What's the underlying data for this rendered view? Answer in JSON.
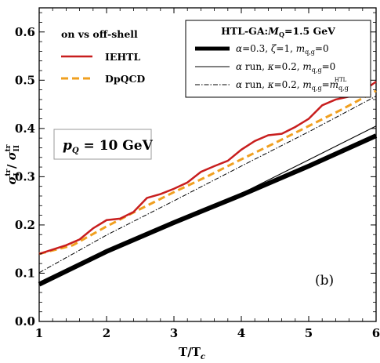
{
  "chart_data": {
    "type": "line",
    "title": "",
    "xlabel": "T/T",
    "xlabel_sub": "c",
    "ylabel": "σ",
    "xlim": [
      1,
      6
    ],
    "ylim": [
      0.0,
      0.65
    ],
    "x_ticks": [
      "1",
      "2",
      "3",
      "4",
      "5",
      "6"
    ],
    "y_ticks": [
      "0.0",
      "0.1",
      "0.2",
      "0.3",
      "0.4",
      "0.5",
      "0.6"
    ],
    "x_tick_values": [
      1,
      2,
      3,
      4,
      5,
      6
    ],
    "y_tick_values": [
      0.0,
      0.1,
      0.2,
      0.3,
      0.4,
      0.5,
      0.6
    ],
    "annotation": "p = 10 GeV",
    "panel_label": "(b)",
    "legend_left": {
      "title": "on vs off-shell",
      "entries": [
        "IEHTL",
        "DpQCD"
      ]
    },
    "legend_right": {
      "title": "HTL-GA:M = 1.5 GeV",
      "entries": [
        "α=0.3, ζ=1, m = 0",
        "α run, κ=0.2, m = 0",
        "α run, κ=0.2, m = m"
      ]
    },
    "series": [
      {
        "name": "IEHTL",
        "color": "#c81e1e",
        "x": [
          1.0,
          1.2,
          1.4,
          1.6,
          1.8,
          2.0,
          2.2,
          2.4,
          2.6,
          2.8,
          3.0,
          3.2,
          3.4,
          3.6,
          3.8,
          4.0,
          4.2,
          4.4,
          4.6,
          4.8,
          5.0,
          5.2,
          5.4,
          5.6,
          5.8,
          6.0
        ],
        "y": [
          0.14,
          0.149,
          0.158,
          0.17,
          0.193,
          0.21,
          0.213,
          0.227,
          0.256,
          0.264,
          0.275,
          0.288,
          0.31,
          0.322,
          0.333,
          0.356,
          0.374,
          0.386,
          0.389,
          0.403,
          0.42,
          0.448,
          0.46,
          0.466,
          0.477,
          0.497
        ]
      },
      {
        "name": "DpQCD",
        "color": "#f0a020",
        "x": [
          1.0,
          1.5,
          2.0,
          2.5,
          3.0,
          3.5,
          4.0,
          4.5,
          5.0,
          5.5,
          6.0
        ],
        "y": [
          0.14,
          0.158,
          0.197,
          0.233,
          0.268,
          0.301,
          0.336,
          0.37,
          0.405,
          0.44,
          0.478
        ]
      },
      {
        "name": "α=0.3, ζ=1, m = 0",
        "color": "#000000",
        "x": [
          1.0,
          2.0,
          3.0,
          4.0,
          5.0,
          6.0
        ],
        "y": [
          0.077,
          0.145,
          0.205,
          0.262,
          0.322,
          0.385
        ]
      },
      {
        "name": "α run, κ=0.2, m = 0",
        "color": "#000000",
        "x": [
          1.0,
          2.0,
          3.0,
          4.0,
          5.0,
          6.0
        ],
        "y": [
          0.077,
          0.146,
          0.206,
          0.265,
          0.335,
          0.405
        ]
      },
      {
        "name": "α run, κ=0.2, m = m",
        "color": "#000000",
        "x": [
          1.0,
          2.0,
          3.0,
          4.0,
          5.0,
          6.0
        ],
        "y": [
          0.101,
          0.179,
          0.25,
          0.322,
          0.393,
          0.467
        ]
      }
    ]
  }
}
